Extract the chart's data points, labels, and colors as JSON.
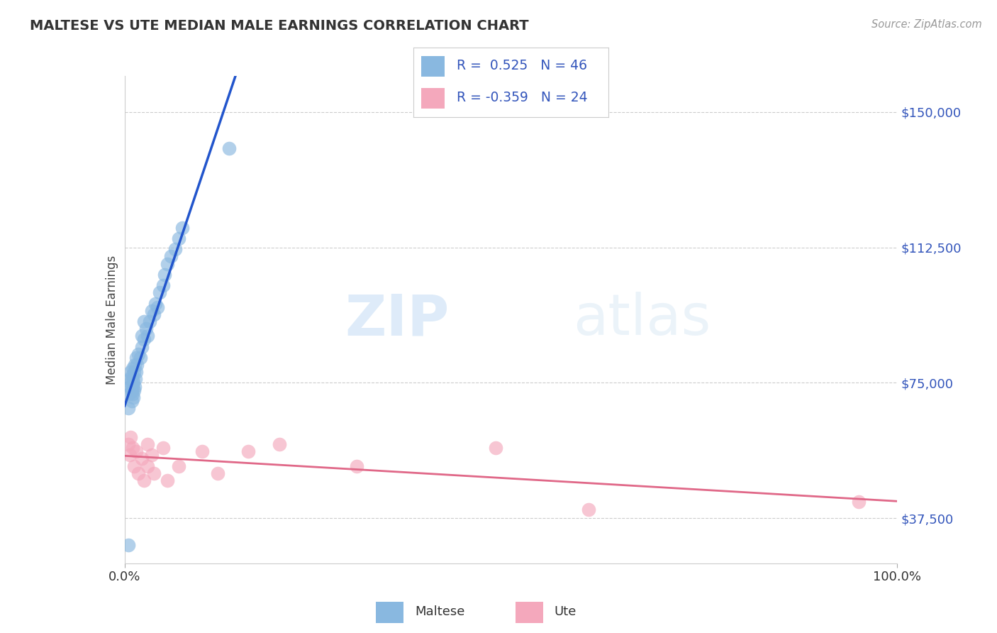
{
  "title": "MALTESE VS UTE MEDIAN MALE EARNINGS CORRELATION CHART",
  "source": "Source: ZipAtlas.com",
  "ylabel": "Median Male Earnings",
  "y_ticks": [
    37500,
    75000,
    112500,
    150000
  ],
  "y_tick_labels": [
    "$37,500",
    "$75,000",
    "$112,500",
    "$150,000"
  ],
  "xlim": [
    0.0,
    1.0
  ],
  "ylim": [
    25000,
    160000
  ],
  "legend_maltese_R": "0.525",
  "legend_maltese_N": "46",
  "legend_ute_R": "-0.359",
  "legend_ute_N": "24",
  "maltese_color": "#89b8e0",
  "ute_color": "#f4a8bc",
  "maltese_line_color": "#2255cc",
  "ute_line_color": "#e06888",
  "background_color": "#ffffff",
  "watermark_zip": "ZIP",
  "watermark_atlas": "atlas",
  "title_color": "#333333",
  "tick_color": "#3355bb",
  "maltese_x": [
    0.005,
    0.006,
    0.007,
    0.007,
    0.008,
    0.008,
    0.009,
    0.009,
    0.009,
    0.01,
    0.01,
    0.01,
    0.01,
    0.011,
    0.011,
    0.012,
    0.012,
    0.013,
    0.013,
    0.014,
    0.015,
    0.015,
    0.016,
    0.018,
    0.02,
    0.022,
    0.022,
    0.025,
    0.025,
    0.028,
    0.03,
    0.032,
    0.035,
    0.038,
    0.04,
    0.042,
    0.045,
    0.05,
    0.052,
    0.055,
    0.06,
    0.065,
    0.07,
    0.075,
    0.135,
    0.005
  ],
  "maltese_y": [
    68000,
    72000,
    74000,
    76000,
    75000,
    78000,
    70000,
    73000,
    77000,
    72000,
    74000,
    76000,
    79000,
    71000,
    75000,
    73000,
    78000,
    74000,
    80000,
    76000,
    78000,
    82000,
    80000,
    83000,
    82000,
    85000,
    88000,
    87000,
    92000,
    90000,
    88000,
    92000,
    95000,
    94000,
    97000,
    96000,
    100000,
    102000,
    105000,
    108000,
    110000,
    112000,
    115000,
    118000,
    140000,
    30000
  ],
  "ute_x": [
    0.005,
    0.007,
    0.008,
    0.01,
    0.012,
    0.015,
    0.018,
    0.022,
    0.025,
    0.03,
    0.03,
    0.035,
    0.038,
    0.05,
    0.055,
    0.07,
    0.1,
    0.12,
    0.16,
    0.2,
    0.3,
    0.48,
    0.6,
    0.95
  ],
  "ute_y": [
    58000,
    55000,
    60000,
    57000,
    52000,
    56000,
    50000,
    54000,
    48000,
    52000,
    58000,
    55000,
    50000,
    57000,
    48000,
    52000,
    56000,
    50000,
    56000,
    58000,
    52000,
    57000,
    40000,
    42000
  ]
}
